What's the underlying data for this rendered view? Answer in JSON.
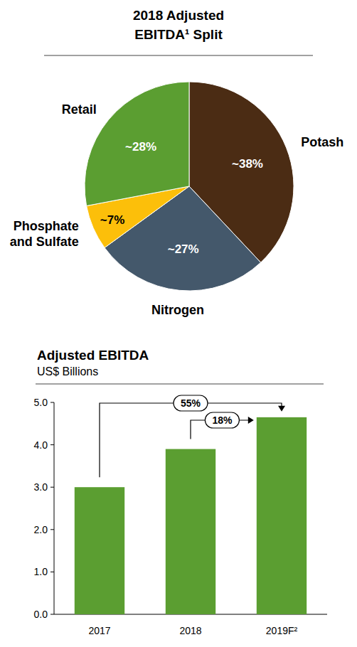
{
  "chart_data": [
    {
      "type": "pie",
      "title": "2018 Adjusted EBITDA¹ Split",
      "categories": [
        "Potash",
        "Nitrogen",
        "Phosphate and Sulfate",
        "Retail"
      ],
      "values": [
        38,
        27,
        7,
        28
      ],
      "value_labels": [
        "~38%",
        "~27%",
        "~7%",
        "~28%"
      ],
      "colors": [
        "#4b2c14",
        "#44586b",
        "#fcbf0a",
        "#5b9e31"
      ],
      "data_labels": true
    },
    {
      "type": "bar",
      "title": "Adjusted EBITDA",
      "subtitle": "US$ Billions",
      "categories": [
        "2017",
        "2018",
        "2019F²"
      ],
      "values": [
        3.0,
        3.9,
        4.65
      ],
      "color": "#5b9e31",
      "ylim": [
        0,
        5
      ],
      "yticks": [
        {
          "value": 0,
          "label": "0.0"
        },
        {
          "value": 1,
          "label": "1.0"
        },
        {
          "value": 2,
          "label": "2.0"
        },
        {
          "value": 3,
          "label": "3.0"
        },
        {
          "value": 4,
          "label": "4.0"
        },
        {
          "value": 5,
          "label": "5.0"
        }
      ],
      "grid": false,
      "annotations": [
        {
          "text": "55%",
          "from": "2017",
          "to": "2019F²"
        },
        {
          "text": "18%",
          "from": "2018",
          "to": "2019F²"
        }
      ]
    }
  ]
}
